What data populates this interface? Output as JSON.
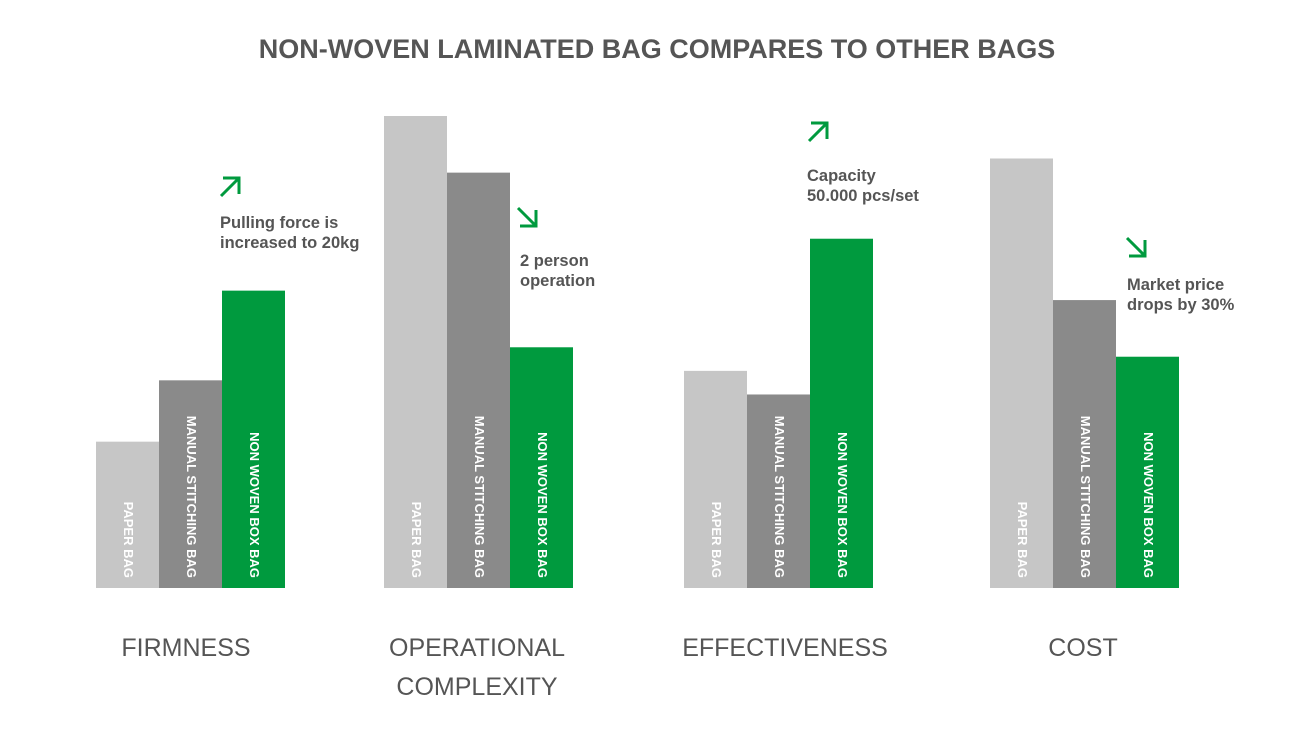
{
  "chart_data": {
    "type": "bar",
    "title": "NON-WOVEN LAMINATED BAG COMPARES TO OTHER BAGS",
    "xlabel": "",
    "ylabel": "",
    "grid": false,
    "legend": "none",
    "categories": [
      "FIRMNESS",
      "OPERATIONAL COMPLEXITY",
      "EFFECTIVENESS",
      "COST"
    ],
    "series": [
      {
        "name": "PAPER BAG",
        "color": "#c6c6c6",
        "values": [
          31,
          100,
          46,
          91
        ]
      },
      {
        "name": "MANUAL STITCHING BAG",
        "color": "#8a8a8a",
        "values": [
          44,
          88,
          41,
          61
        ]
      },
      {
        "name": "NON WOVEN BOX BAG",
        "color": "#009a3e",
        "values": [
          63,
          51,
          74,
          49
        ]
      }
    ],
    "annotations": [
      {
        "category": "FIRMNESS",
        "direction": "up",
        "lines": [
          "Pulling force is",
          "increased to 20kg"
        ]
      },
      {
        "category": "OPERATIONAL COMPLEXITY",
        "direction": "down",
        "lines": [
          "2 person",
          "operation"
        ]
      },
      {
        "category": "EFFECTIVENESS",
        "direction": "up",
        "lines": [
          "Capacity",
          "50.000 pcs/set"
        ]
      },
      {
        "category": "COST",
        "direction": "down",
        "lines": [
          "Market price",
          "drops by 30%"
        ]
      }
    ],
    "accent_color": "#009a3e",
    "text_color": "#555555"
  }
}
